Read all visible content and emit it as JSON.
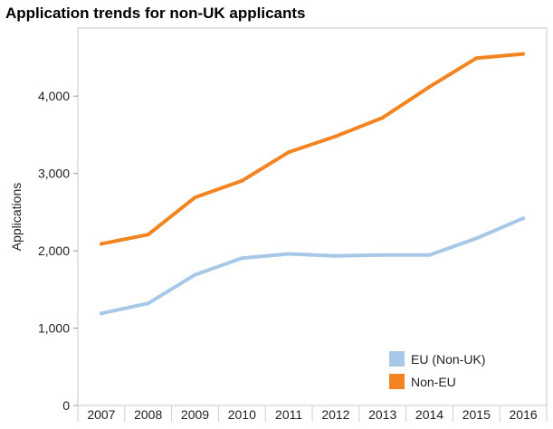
{
  "chart_data": {
    "type": "line",
    "title": "Application trends for non-UK applicants",
    "xlabel": "",
    "ylabel": "Applications",
    "categories": [
      "2007",
      "2008",
      "2009",
      "2010",
      "2011",
      "2012",
      "2013",
      "2014",
      "2015",
      "2016"
    ],
    "y_ticks": [
      0,
      1000,
      2000,
      3000,
      4000
    ],
    "y_tick_labels": [
      "0",
      "1,000",
      "2,000",
      "3,000",
      "4,000"
    ],
    "ylim": [
      0,
      4880
    ],
    "grid": false,
    "legend_position": "bottom-right",
    "series": [
      {
        "name": "EU (Non-UK)",
        "color": "#a8c8e8",
        "values": [
          1190,
          1320,
          1690,
          1905,
          1960,
          1935,
          1945,
          1945,
          2160,
          2420
        ]
      },
      {
        "name": "Non-EU",
        "color": "#f28522",
        "values": [
          2090,
          2210,
          2690,
          2905,
          3275,
          3480,
          3720,
          4120,
          4490,
          4545
        ]
      }
    ]
  }
}
